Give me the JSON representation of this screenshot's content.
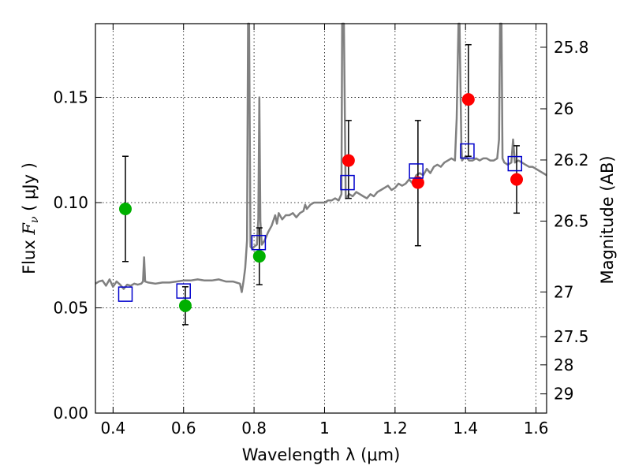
{
  "chart_data": {
    "type": "scatter",
    "xlabel": "Wavelength  λ (μm)",
    "ylabel": "Flux  F_ν  ( μJy )",
    "ylabel_parts": {
      "before": "Flux  ",
      "symbol": "F",
      "sub": "ν",
      "after": "  ( μJy )"
    },
    "y2label": "Magnitude (AB)",
    "xlim": [
      0.35,
      1.63
    ],
    "ylim": [
      0.0,
      0.185
    ],
    "grid": true,
    "x_ticks": [
      {
        "value": 0.4,
        "label": "0.4"
      },
      {
        "value": 0.6,
        "label": "0.6"
      },
      {
        "value": 0.8,
        "label": "0.8"
      },
      {
        "value": 1.0,
        "label": "1"
      },
      {
        "value": 1.2,
        "label": "1.2"
      },
      {
        "value": 1.4,
        "label": "1.4"
      },
      {
        "value": 1.6,
        "label": "1.6"
      }
    ],
    "y_ticks": [
      {
        "value": 0.0,
        "label": "0.00"
      },
      {
        "value": 0.05,
        "label": "0.05"
      },
      {
        "value": 0.1,
        "label": "0.10"
      },
      {
        "value": 0.15,
        "label": "0.15"
      }
    ],
    "y2_ticks": [
      {
        "value": 25.8,
        "label": "25.8"
      },
      {
        "value": 26.0,
        "label": "26"
      },
      {
        "value": 26.2,
        "label": "26.2"
      },
      {
        "value": 26.5,
        "label": "26.5"
      },
      {
        "value": 27.0,
        "label": "27"
      },
      {
        "value": 27.5,
        "label": "27.5"
      },
      {
        "value": 28.0,
        "label": "28"
      },
      {
        "value": 29.0,
        "label": "29"
      }
    ],
    "colors": {
      "model_line": "#808080",
      "green_points": "#00b000",
      "red_points": "#ff0000",
      "model_squares": "#0000cc",
      "error_bars": "#000000"
    },
    "series": [
      {
        "kind": "observed-green",
        "points": [
          {
            "x": 0.435,
            "y": 0.097,
            "err_low": 0.072,
            "err_high": 0.122
          },
          {
            "x": 0.605,
            "y": 0.051,
            "err_low": 0.042,
            "err_high": 0.06
          },
          {
            "x": 0.815,
            "y": 0.0745,
            "err_low": 0.061,
            "err_high": 0.088
          }
        ]
      },
      {
        "kind": "observed-red",
        "points": [
          {
            "x": 1.068,
            "y": 0.12,
            "err_low": 0.102,
            "err_high": 0.139
          },
          {
            "x": 1.265,
            "y": 0.1095,
            "err_low": 0.0795,
            "err_high": 0.139
          },
          {
            "x": 1.408,
            "y": 0.149,
            "err_low": 0.122,
            "err_high": 0.175
          },
          {
            "x": 1.545,
            "y": 0.111,
            "err_low": 0.095,
            "err_high": 0.127
          }
        ]
      },
      {
        "kind": "model-squares",
        "points": [
          {
            "x": 0.435,
            "y": 0.0565
          },
          {
            "x": 0.6,
            "y": 0.058
          },
          {
            "x": 0.813,
            "y": 0.081
          },
          {
            "x": 1.065,
            "y": 0.1095
          },
          {
            "x": 1.26,
            "y": 0.115
          },
          {
            "x": 1.405,
            "y": 0.1245
          },
          {
            "x": 1.54,
            "y": 0.1185
          }
        ]
      },
      {
        "kind": "model-spectrum",
        "line": [
          [
            0.35,
            0.0615
          ],
          [
            0.36,
            0.0625
          ],
          [
            0.37,
            0.063
          ],
          [
            0.38,
            0.0605
          ],
          [
            0.39,
            0.0635
          ],
          [
            0.4,
            0.06
          ],
          [
            0.41,
            0.0625
          ],
          [
            0.42,
            0.061
          ],
          [
            0.43,
            0.059
          ],
          [
            0.44,
            0.061
          ],
          [
            0.45,
            0.0605
          ],
          [
            0.46,
            0.0615
          ],
          [
            0.47,
            0.061
          ],
          [
            0.48,
            0.0615
          ],
          [
            0.485,
            0.0625
          ],
          [
            0.488,
            0.074
          ],
          [
            0.491,
            0.0625
          ],
          [
            0.5,
            0.062
          ],
          [
            0.52,
            0.0615
          ],
          [
            0.54,
            0.062
          ],
          [
            0.56,
            0.062
          ],
          [
            0.58,
            0.0625
          ],
          [
            0.6,
            0.063
          ],
          [
            0.62,
            0.063
          ],
          [
            0.64,
            0.0635
          ],
          [
            0.66,
            0.063
          ],
          [
            0.68,
            0.063
          ],
          [
            0.7,
            0.0635
          ],
          [
            0.72,
            0.0625
          ],
          [
            0.74,
            0.0625
          ],
          [
            0.76,
            0.0615
          ],
          [
            0.765,
            0.0575
          ],
          [
            0.77,
            0.0625
          ],
          [
            0.775,
            0.069
          ],
          [
            0.78,
            0.082
          ],
          [
            0.783,
            0.185
          ],
          [
            0.786,
            0.185
          ],
          [
            0.79,
            0.079
          ],
          [
            0.795,
            0.078
          ],
          [
            0.8,
            0.079
          ],
          [
            0.808,
            0.08
          ],
          [
            0.812,
            0.092
          ],
          [
            0.815,
            0.15
          ],
          [
            0.818,
            0.091
          ],
          [
            0.822,
            0.08
          ],
          [
            0.83,
            0.082
          ],
          [
            0.84,
            0.086
          ],
          [
            0.85,
            0.089
          ],
          [
            0.86,
            0.094
          ],
          [
            0.865,
            0.09
          ],
          [
            0.87,
            0.095
          ],
          [
            0.88,
            0.092
          ],
          [
            0.89,
            0.094
          ],
          [
            0.9,
            0.094
          ],
          [
            0.91,
            0.095
          ],
          [
            0.92,
            0.093
          ],
          [
            0.93,
            0.095
          ],
          [
            0.94,
            0.096
          ],
          [
            0.945,
            0.099
          ],
          [
            0.95,
            0.097
          ],
          [
            0.96,
            0.099
          ],
          [
            0.97,
            0.1
          ],
          [
            0.98,
            0.1
          ],
          [
            0.99,
            0.1
          ],
          [
            1.0,
            0.1
          ],
          [
            1.01,
            0.101
          ],
          [
            1.02,
            0.101
          ],
          [
            1.03,
            0.102
          ],
          [
            1.04,
            0.101
          ],
          [
            1.048,
            0.104
          ],
          [
            1.05,
            0.185
          ],
          [
            1.055,
            0.185
          ],
          [
            1.06,
            0.102
          ],
          [
            1.07,
            0.104
          ],
          [
            1.08,
            0.103
          ],
          [
            1.09,
            0.105
          ],
          [
            1.1,
            0.104
          ],
          [
            1.11,
            0.103
          ],
          [
            1.12,
            0.102
          ],
          [
            1.13,
            0.104
          ],
          [
            1.14,
            0.103
          ],
          [
            1.15,
            0.105
          ],
          [
            1.16,
            0.106
          ],
          [
            1.17,
            0.107
          ],
          [
            1.18,
            0.108
          ],
          [
            1.19,
            0.106
          ],
          [
            1.2,
            0.107
          ],
          [
            1.21,
            0.109
          ],
          [
            1.22,
            0.108
          ],
          [
            1.23,
            0.109
          ],
          [
            1.24,
            0.111
          ],
          [
            1.25,
            0.109
          ],
          [
            1.26,
            0.113
          ],
          [
            1.27,
            0.114
          ],
          [
            1.28,
            0.113
          ],
          [
            1.29,
            0.116
          ],
          [
            1.3,
            0.114
          ],
          [
            1.31,
            0.117
          ],
          [
            1.32,
            0.118
          ],
          [
            1.33,
            0.117
          ],
          [
            1.34,
            0.119
          ],
          [
            1.35,
            0.12
          ],
          [
            1.36,
            0.121
          ],
          [
            1.37,
            0.12
          ],
          [
            1.375,
            0.14
          ],
          [
            1.38,
            0.185
          ],
          [
            1.383,
            0.185
          ],
          [
            1.388,
            0.128
          ],
          [
            1.39,
            0.12
          ],
          [
            1.395,
            0.121
          ],
          [
            1.4,
            0.122
          ],
          [
            1.41,
            0.12
          ],
          [
            1.42,
            0.12
          ],
          [
            1.43,
            0.121
          ],
          [
            1.44,
            0.12
          ],
          [
            1.45,
            0.121
          ],
          [
            1.46,
            0.121
          ],
          [
            1.47,
            0.12
          ],
          [
            1.48,
            0.12
          ],
          [
            1.49,
            0.121
          ],
          [
            1.495,
            0.13
          ],
          [
            1.498,
            0.185
          ],
          [
            1.502,
            0.185
          ],
          [
            1.505,
            0.121
          ],
          [
            1.51,
            0.119
          ],
          [
            1.52,
            0.118
          ],
          [
            1.53,
            0.119
          ],
          [
            1.535,
            0.13
          ],
          [
            1.54,
            0.119
          ],
          [
            1.55,
            0.12
          ],
          [
            1.56,
            0.119
          ],
          [
            1.57,
            0.118
          ],
          [
            1.58,
            0.117
          ],
          [
            1.59,
            0.117
          ],
          [
            1.6,
            0.116
          ],
          [
            1.61,
            0.115
          ],
          [
            1.62,
            0.114
          ],
          [
            1.63,
            0.113
          ]
        ]
      }
    ]
  }
}
